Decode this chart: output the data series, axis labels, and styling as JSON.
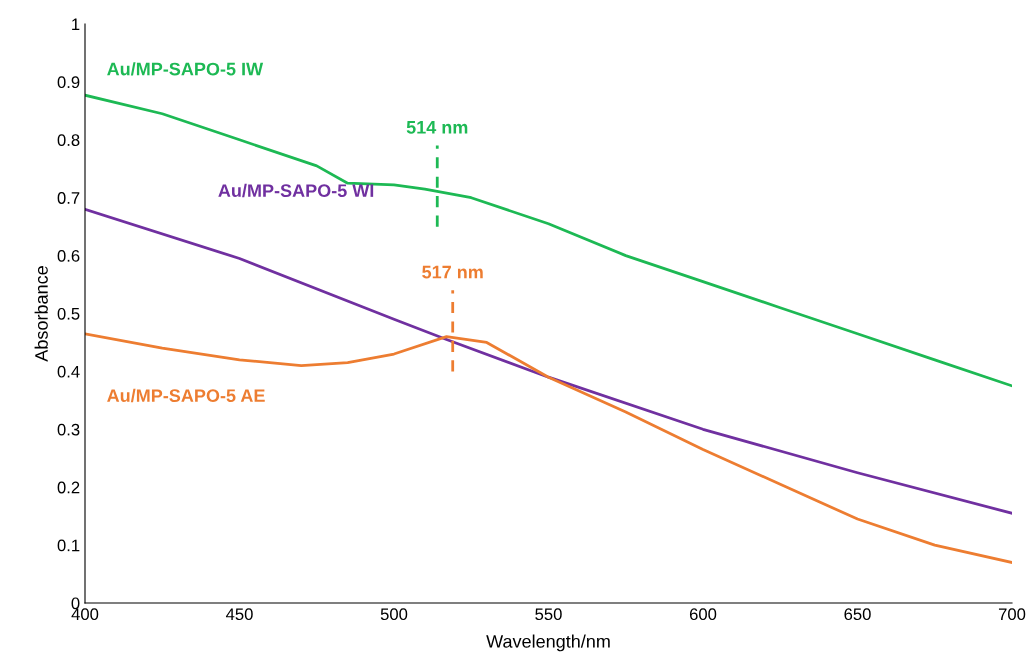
{
  "chart_data": {
    "type": "line",
    "xlabel": "Wavelength/nm",
    "ylabel": "Absorbance",
    "xlim": [
      400,
      700
    ],
    "xticks": [
      400,
      450,
      500,
      550,
      600,
      650,
      700
    ],
    "ylim": [
      0,
      1
    ],
    "yticks": [
      0,
      0.1,
      0.2,
      0.3,
      0.4,
      0.5,
      0.6,
      0.7,
      0.8,
      0.9,
      1
    ],
    "grid": false,
    "legend": false,
    "marker": "none",
    "line_style": "solid",
    "series": [
      {
        "name": "Au/MP-SAPO-5 IW",
        "color": "#1db954",
        "x": [
          400,
          425,
          450,
          475,
          485,
          500,
          510,
          525,
          550,
          575,
          600,
          625,
          650,
          675,
          700
        ],
        "values": [
          0.877,
          0.845,
          0.8,
          0.755,
          0.725,
          0.722,
          0.715,
          0.7,
          0.655,
          0.6,
          0.555,
          0.51,
          0.465,
          0.42,
          0.375
        ]
      },
      {
        "name": "Au/MP-SAPO-5 WI",
        "color": "#7030a0",
        "x": [
          400,
          450,
          500,
          517,
          550,
          600,
          650,
          700
        ],
        "values": [
          0.68,
          0.595,
          0.49,
          0.455,
          0.39,
          0.3,
          0.225,
          0.155
        ]
      },
      {
        "name": "Au/MP-SAPO-5 AE",
        "color": "#ed7d31",
        "x": [
          400,
          425,
          450,
          470,
          485,
          500,
          517,
          530,
          550,
          575,
          600,
          625,
          650,
          675,
          700
        ],
        "values": [
          0.465,
          0.44,
          0.42,
          0.41,
          0.415,
          0.43,
          0.46,
          0.45,
          0.39,
          0.33,
          0.265,
          0.205,
          0.145,
          0.1,
          0.07
        ]
      },
      {
        "color": "#1db954",
        "line_style": "dashed",
        "x": [
          514,
          514
        ],
        "values": [
          0.65,
          0.79
        ]
      },
      {
        "color": "#ed7d31",
        "line_style": "dashed",
        "x": [
          519,
          519
        ],
        "values": [
          0.4,
          0.54
        ]
      }
    ],
    "annotations": [
      {
        "text": "514 nm",
        "x": 514,
        "y": 0.79
      },
      {
        "text": "517 nm",
        "x": 519,
        "y": 0.54
      }
    ]
  }
}
